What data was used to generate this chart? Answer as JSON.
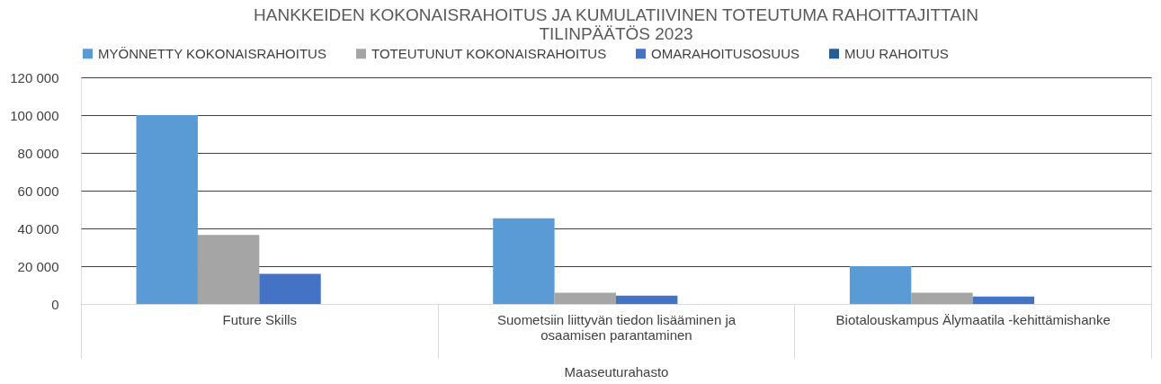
{
  "chart_data": {
    "type": "bar",
    "title": "HANKKEIDEN KOKONAISRAHOITUS JA KUMULATIIVINEN TOTEUTUMA RAHOITTAJITTAIN TILINPÄÄTÖS 2023",
    "xlabel": "Maaseuturahasto",
    "categories": [
      "Future Skills",
      "Suometsiin liittyvän tiedon lisääminen ja osaamisen parantaminen",
      "Biotalouskampus Älymaatila -kehittämishanke"
    ],
    "series": [
      {
        "name": "MYÖNNETTY KOKONAISRAHOITUS",
        "color": "#5b9bd5",
        "values": [
          100000,
          45300,
          20000
        ]
      },
      {
        "name": "TOTEUTUNUT KOKONAISRAHOITUS",
        "color": "#a5a5a5",
        "values": [
          36500,
          6000,
          6000
        ]
      },
      {
        "name": "OMARAHOITUSOSUUS",
        "color": "#4472c4",
        "values": [
          16000,
          4400,
          3900
        ]
      },
      {
        "name": "MUU RAHOITUS",
        "color": "#255e91",
        "values": [
          0,
          0,
          0
        ]
      }
    ],
    "ylim": [
      0,
      120000
    ],
    "yticks": [
      {
        "value": 0,
        "label": "0"
      },
      {
        "value": 20000,
        "label": "20 000"
      },
      {
        "value": 40000,
        "label": "40 000"
      },
      {
        "value": 60000,
        "label": "60 000"
      },
      {
        "value": 80000,
        "label": "80 000"
      },
      {
        "value": 100000,
        "label": "100 000"
      },
      {
        "value": 120000,
        "label": "120 000"
      }
    ],
    "grid": "y",
    "legend": "top"
  }
}
